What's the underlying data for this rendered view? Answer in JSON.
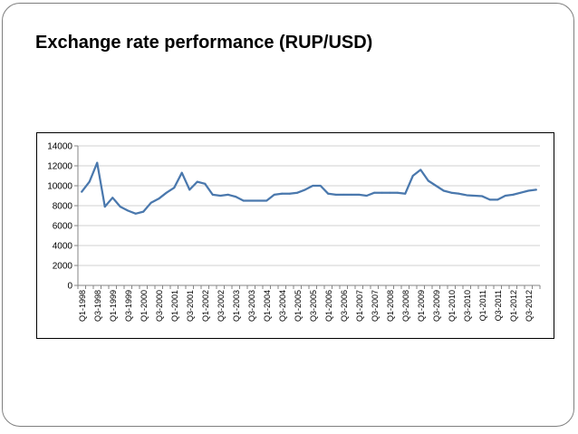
{
  "slide": {
    "title": "Exchange rate performance (RUP/USD)",
    "page_number": ""
  },
  "chart_data": {
    "type": "line",
    "title": "",
    "xlabel": "",
    "ylabel": "",
    "ylim": [
      0,
      14000
    ],
    "yticks": [
      0,
      2000,
      4000,
      6000,
      8000,
      10000,
      12000,
      14000
    ],
    "grid": true,
    "legend": "none",
    "line_color": "#4a78ad",
    "tick_labels": [
      "Q1-1998",
      "Q3-1998",
      "Q1-1999",
      "Q3-1999",
      "Q1-2000",
      "Q3-2000",
      "Q1-2001",
      "Q3-2001",
      "Q1-2002",
      "Q3-2002",
      "Q1-2003",
      "Q3-2003",
      "Q1-2004",
      "Q3-2004",
      "Q1-2005",
      "Q3-2005",
      "Q1-2006",
      "Q3-2006",
      "Q1-2007",
      "Q3-2007",
      "Q1-2008",
      "Q3-2008",
      "Q1-2009",
      "Q3-2009",
      "Q1-2010",
      "Q3-2010",
      "Q1-2011",
      "Q3-2011",
      "Q1-2012",
      "Q3-2012"
    ],
    "x": [
      "Q1-1998",
      "Q2-1998",
      "Q3-1998",
      "Q4-1998",
      "Q1-1999",
      "Q2-1999",
      "Q3-1999",
      "Q4-1999",
      "Q1-2000",
      "Q2-2000",
      "Q3-2000",
      "Q4-2000",
      "Q1-2001",
      "Q2-2001",
      "Q3-2001",
      "Q4-2001",
      "Q1-2002",
      "Q2-2002",
      "Q3-2002",
      "Q4-2002",
      "Q1-2003",
      "Q2-2003",
      "Q3-2003",
      "Q4-2003",
      "Q1-2004",
      "Q2-2004",
      "Q3-2004",
      "Q4-2004",
      "Q1-2005",
      "Q2-2005",
      "Q3-2005",
      "Q4-2005",
      "Q1-2006",
      "Q2-2006",
      "Q3-2006",
      "Q4-2006",
      "Q1-2007",
      "Q2-2007",
      "Q3-2007",
      "Q4-2007",
      "Q1-2008",
      "Q2-2008",
      "Q3-2008",
      "Q4-2008",
      "Q1-2009",
      "Q2-2009",
      "Q3-2009",
      "Q4-2009",
      "Q1-2010",
      "Q2-2010",
      "Q3-2010",
      "Q4-2010",
      "Q1-2011",
      "Q2-2011",
      "Q3-2011",
      "Q4-2011",
      "Q1-2012",
      "Q2-2012",
      "Q3-2012",
      "Q4-2012"
    ],
    "series": [
      {
        "values": [
          9400,
          10400,
          12300,
          7900,
          8800,
          7900,
          7500,
          7200,
          7400,
          8300,
          8700,
          9300,
          9800,
          11300,
          9600,
          10400,
          10200,
          9100,
          9000,
          9100,
          8900,
          8500,
          8500,
          8500,
          8500,
          9100,
          9200,
          9200,
          9300,
          9600,
          10000,
          10000,
          9200,
          9100,
          9100,
          9100,
          9100,
          9000,
          9300,
          9300,
          9300,
          9300,
          9200,
          11000,
          11600,
          10500,
          10000,
          9500,
          9300,
          9200,
          9050,
          9000,
          8950,
          8600,
          8600,
          9000,
          9100,
          9300,
          9500,
          9600
        ]
      }
    ]
  }
}
